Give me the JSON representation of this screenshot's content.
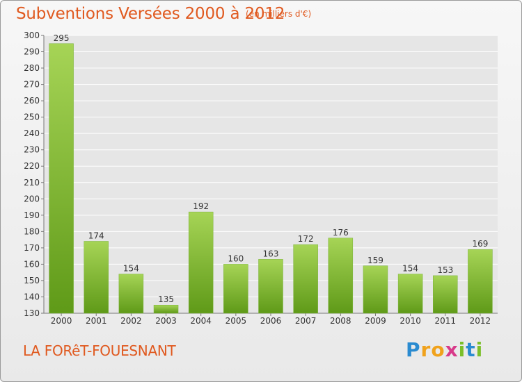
{
  "header": {
    "title": "Subventions Versées 2000 à 2012",
    "subtitle": "(en milliers d'€)"
  },
  "footer": {
    "place": "LA FORêT-FOUESNANT",
    "logo_letters": [
      "P",
      "r",
      "o",
      "x",
      "i",
      "t",
      "i"
    ],
    "logo_colors": [
      "#2a8bd0",
      "#f0a21c",
      "#f0a21c",
      "#d83a8a",
      "#7bbf2a",
      "#2a8bd0",
      "#7bbf2a"
    ]
  },
  "colors": {
    "bar_light": "#a6d456",
    "bar_dark": "#5f9a18",
    "axis_text": "#333333",
    "grid": "#ffffff"
  },
  "chart_data": {
    "type": "bar",
    "categories": [
      "2000",
      "2001",
      "2002",
      "2003",
      "2004",
      "2005",
      "2006",
      "2007",
      "2008",
      "2009",
      "2010",
      "2011",
      "2012"
    ],
    "values": [
      295,
      174,
      154,
      135,
      192,
      160,
      163,
      172,
      176,
      159,
      154,
      153,
      169
    ],
    "ylim": [
      130,
      300
    ],
    "yticks": [
      130,
      140,
      150,
      160,
      170,
      180,
      190,
      200,
      210,
      220,
      230,
      240,
      250,
      260,
      270,
      280,
      290,
      300
    ],
    "grid": true,
    "data_labels": true
  }
}
